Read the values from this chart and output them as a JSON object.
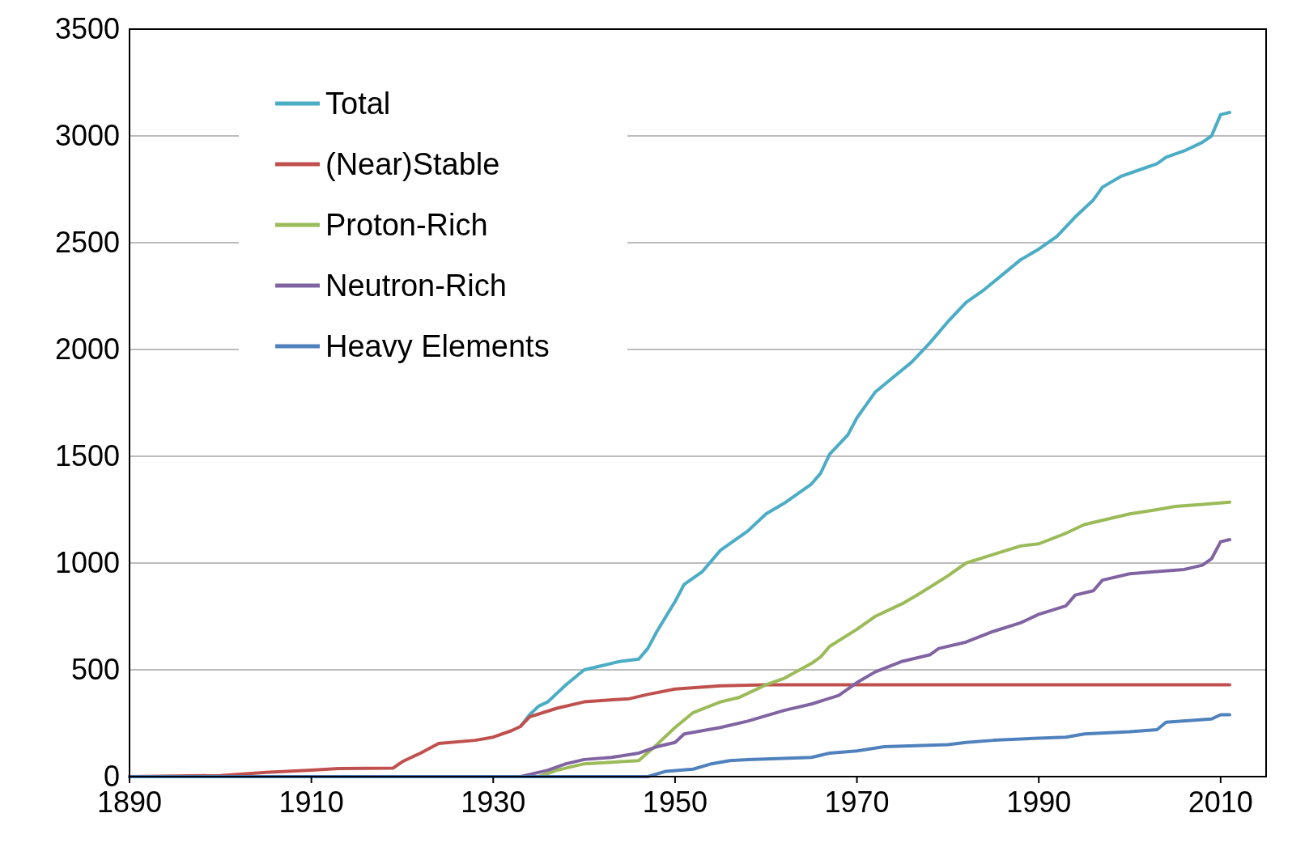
{
  "chart_data": {
    "type": "line",
    "xlim": [
      1890,
      2015
    ],
    "xticks": [
      1890,
      1910,
      1930,
      1950,
      1970,
      1990,
      2010
    ],
    "ylim": [
      0,
      3500
    ],
    "yticks": [
      0,
      500,
      1000,
      1500,
      2000,
      2500,
      3000,
      3500
    ],
    "grid": "y",
    "legend": "top left",
    "line_style": "solid",
    "marker": "none",
    "series": [
      {
        "name": "Total",
        "color": "#4bacc6",
        "x": [
          1933,
          1934,
          1935,
          1936,
          1938,
          1940,
          1942,
          1944,
          1946,
          1947,
          1948,
          1950,
          1951,
          1953,
          1955,
          1958,
          1960,
          1962,
          1965,
          1966,
          1967,
          1969,
          1970,
          1972,
          1974,
          1976,
          1978,
          1980,
          1982,
          1984,
          1986,
          1988,
          1990,
          1992,
          1994,
          1996,
          1997,
          1999,
          2001,
          2003,
          2004,
          2006,
          2008,
          2009,
          2010,
          2011
        ],
        "values": [
          235,
          290,
          330,
          350,
          430,
          500,
          520,
          540,
          550,
          600,
          680,
          820,
          900,
          960,
          1060,
          1150,
          1230,
          1280,
          1370,
          1420,
          1510,
          1600,
          1680,
          1800,
          1870,
          1940,
          2030,
          2130,
          2220,
          2280,
          2350,
          2420,
          2470,
          2530,
          2620,
          2700,
          2760,
          2810,
          2840,
          2870,
          2900,
          2930,
          2970,
          3000,
          3100,
          3110
        ]
      },
      {
        "name": "(Near)Stable",
        "color": "#c0504d",
        "x": [
          1890,
          1900,
          1905,
          1910,
          1913,
          1919,
          1920,
          1922,
          1924,
          1928,
          1930,
          1932,
          1933,
          1934,
          1937,
          1940,
          1945,
          1947,
          1950,
          1955,
          1960,
          2011
        ],
        "values": [
          0,
          5,
          20,
          30,
          38,
          40,
          70,
          110,
          155,
          170,
          185,
          215,
          235,
          280,
          320,
          350,
          365,
          385,
          410,
          425,
          430,
          430
        ]
      },
      {
        "name": "Proton-Rich",
        "color": "#9bbb59",
        "x": [
          1890,
          1935,
          1937,
          1940,
          1946,
          1948,
          1950,
          1952,
          1955,
          1957,
          1960,
          1962,
          1965,
          1966,
          1967,
          1970,
          1972,
          1975,
          1977,
          1980,
          1982,
          1985,
          1988,
          1990,
          1993,
          1995,
          1998,
          2000,
          2003,
          2005,
          2008,
          2011
        ],
        "values": [
          0,
          0,
          30,
          60,
          75,
          150,
          230,
          300,
          350,
          370,
          430,
          460,
          530,
          560,
          610,
          690,
          750,
          810,
          860,
          940,
          1000,
          1040,
          1080,
          1090,
          1140,
          1180,
          1210,
          1230,
          1250,
          1265,
          1275,
          1285
        ]
      },
      {
        "name": "Neutron-Rich",
        "color": "#8064a2",
        "x": [
          1890,
          1933,
          1936,
          1938,
          1940,
          1943,
          1946,
          1948,
          1950,
          1951,
          1955,
          1958,
          1962,
          1965,
          1968,
          1970,
          1972,
          1975,
          1978,
          1979,
          1982,
          1985,
          1988,
          1990,
          1993,
          1994,
          1996,
          1997,
          2000,
          2003,
          2006,
          2008,
          2009,
          2010,
          2011
        ],
        "values": [
          0,
          0,
          30,
          60,
          80,
          90,
          110,
          140,
          160,
          200,
          230,
          260,
          310,
          340,
          380,
          440,
          490,
          540,
          570,
          600,
          630,
          680,
          720,
          760,
          800,
          850,
          870,
          920,
          950,
          960,
          970,
          990,
          1020,
          1100,
          1110
        ]
      },
      {
        "name": "Heavy Elements",
        "color": "#4f81bd",
        "x": [
          1890,
          1947,
          1949,
          1952,
          1954,
          1956,
          1958,
          1965,
          1967,
          1970,
          1973,
          1980,
          1982,
          1985,
          1990,
          1993,
          1995,
          2000,
          2003,
          2004,
          2009,
          2010,
          2011
        ],
        "values": [
          0,
          0,
          25,
          35,
          60,
          75,
          80,
          90,
          110,
          120,
          140,
          150,
          160,
          170,
          180,
          185,
          200,
          210,
          220,
          255,
          270,
          290,
          290
        ]
      }
    ]
  }
}
